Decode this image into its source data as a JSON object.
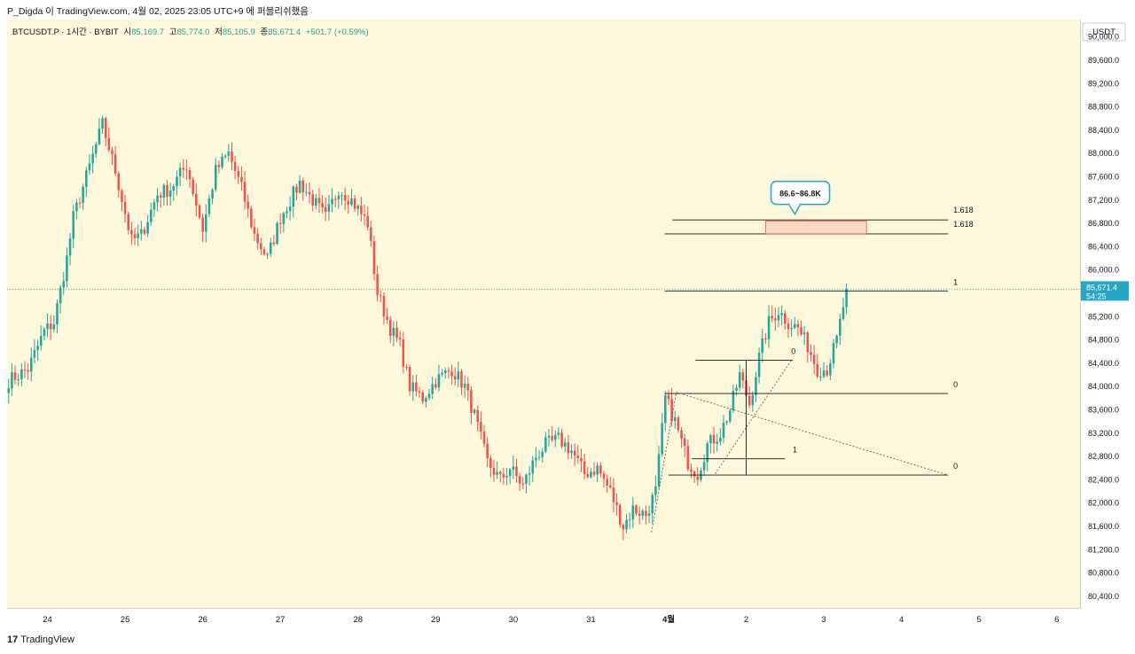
{
  "header": {
    "title": "P_Digda 이 TradingView.com, 4월 02, 2025 23:05 UTC+9 에 퍼블리쉬했음"
  },
  "legend": {
    "symbol": "BTCUSDT.P · 1시간 · BYBIT",
    "open_label": "시",
    "open": "85,169.7",
    "high_label": "고",
    "high": "85,774.0",
    "low_label": "저",
    "low": "85,105.9",
    "close_label": "종",
    "close": "85,671.4",
    "change": "+501.7 (+0.59%)"
  },
  "currency": "USDT",
  "footer": {
    "logo": "17",
    "brand": "TradingView"
  },
  "colors": {
    "up": "#26a69a",
    "down": "#ef5350",
    "background": "#fdf7dc",
    "price_tag": "#26a6c4"
  },
  "chart_data": {
    "type": "candlestick",
    "symbol": "BTCUSDT.P",
    "interval": "1시간",
    "exchange": "BYBIT",
    "ylim": [
      80200,
      90300
    ],
    "y_ticks": [
      "90,000.0",
      "89,600.0",
      "89,200.0",
      "88,800.0",
      "88,400.0",
      "88,000.0",
      "87,600.0",
      "87,200.0",
      "86,800.0",
      "86,400.0",
      "86,000.0",
      "85,600.0",
      "85,200.0",
      "84,800.0",
      "84,400.0",
      "84,000.0",
      "83,600.0",
      "83,200.0",
      "82,800.0",
      "82,400.0",
      "82,000.0",
      "81,600.0",
      "81,200.0",
      "80,800.0",
      "80,400.0"
    ],
    "y_tick_values": [
      90000,
      89600,
      89200,
      88800,
      88400,
      88000,
      87600,
      87200,
      86800,
      86400,
      86000,
      85600,
      85200,
      84800,
      84400,
      84000,
      83600,
      83200,
      82800,
      82400,
      82000,
      81600,
      81200,
      80800,
      80400
    ],
    "x_ticks": [
      {
        "label": "24",
        "day": 0
      },
      {
        "label": "25",
        "day": 1
      },
      {
        "label": "26",
        "day": 2
      },
      {
        "label": "27",
        "day": 3
      },
      {
        "label": "28",
        "day": 4
      },
      {
        "label": "29",
        "day": 5
      },
      {
        "label": "30",
        "day": 6
      },
      {
        "label": "31",
        "day": 7
      },
      {
        "label": "4월",
        "day": 8
      },
      {
        "label": "2",
        "day": 9
      },
      {
        "label": "3",
        "day": 10
      },
      {
        "label": "4",
        "day": 11
      },
      {
        "label": "5",
        "day": 12
      },
      {
        "label": "6",
        "day": 13
      }
    ],
    "x_start_day": -0.52,
    "x_end_day": 13.3,
    "first_candle_day": -0.5,
    "candle_hours": 1,
    "anchors": [
      [
        0,
        84100
      ],
      [
        6,
        84300
      ],
      [
        11,
        84950
      ],
      [
        14,
        85100
      ],
      [
        18,
        86200
      ],
      [
        20,
        86900
      ],
      [
        24,
        87600
      ],
      [
        29,
        88500
      ],
      [
        33,
        87700
      ],
      [
        38,
        86500
      ],
      [
        41,
        86600
      ],
      [
        46,
        87300
      ],
      [
        50,
        87400
      ],
      [
        55,
        87800
      ],
      [
        60,
        86700
      ],
      [
        64,
        87700
      ],
      [
        68,
        88000
      ],
      [
        72,
        87400
      ],
      [
        76,
        86600
      ],
      [
        80,
        86200
      ],
      [
        84,
        86900
      ],
      [
        90,
        87500
      ],
      [
        94,
        87200
      ],
      [
        98,
        86900
      ],
      [
        102,
        87400
      ],
      [
        106,
        87200
      ],
      [
        111,
        86800
      ],
      [
        114,
        85600
      ],
      [
        118,
        85000
      ],
      [
        121,
        84700
      ],
      [
        124,
        84000
      ],
      [
        128,
        83800
      ],
      [
        132,
        84100
      ],
      [
        137,
        84300
      ],
      [
        141,
        84000
      ],
      [
        144,
        83500
      ],
      [
        148,
        82700
      ],
      [
        152,
        82400
      ],
      [
        155,
        82600
      ],
      [
        159,
        82300
      ],
      [
        163,
        82800
      ],
      [
        166,
        83000
      ],
      [
        170,
        83100
      ],
      [
        174,
        82900
      ],
      [
        178,
        82500
      ],
      [
        182,
        82600
      ],
      [
        186,
        82200
      ],
      [
        190,
        81600
      ],
      [
        193,
        81900
      ],
      [
        197,
        81800
      ],
      [
        200,
        82200
      ],
      [
        203,
        83800
      ],
      [
        206,
        83400
      ],
      [
        210,
        82700
      ],
      [
        213,
        82500
      ],
      [
        216,
        83000
      ],
      [
        220,
        83200
      ],
      [
        223,
        83600
      ],
      [
        226,
        84200
      ],
      [
        229,
        83700
      ],
      [
        232,
        84500
      ],
      [
        235,
        85100
      ],
      [
        238,
        85300
      ],
      [
        241,
        85100
      ],
      [
        244,
        85000
      ],
      [
        247,
        84700
      ],
      [
        250,
        84300
      ],
      [
        253,
        84300
      ],
      [
        256,
        84800
      ],
      [
        259,
        85670
      ]
    ],
    "last_price": "85,671.4",
    "countdown": "54:25",
    "annotations": {
      "callout": "86.6~86.8K",
      "zone_low": 86620,
      "zone_high": 86840,
      "fib_labels": [
        "1.618",
        "1.618",
        "1",
        "0",
        "1",
        "0",
        "0"
      ]
    }
  }
}
